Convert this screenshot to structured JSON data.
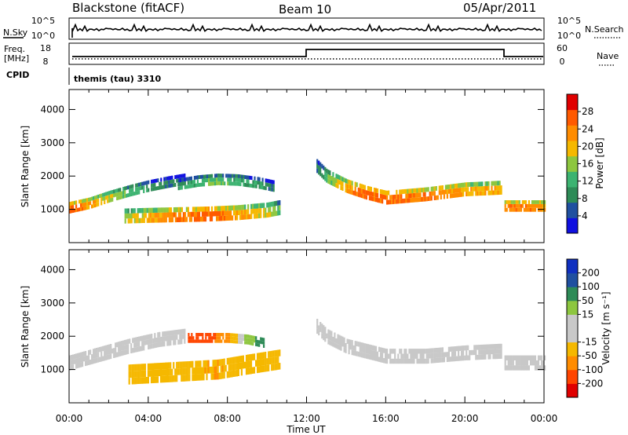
{
  "header": {
    "station": "Blackstone (fitACF)",
    "beam": "Beam 10",
    "date": "05/Apr/2011"
  },
  "top_panels": {
    "nsky_label": "N.Sky",
    "nsearch_label": "N.Search",
    "nsky_ticks": [
      "10^5",
      "10^0"
    ],
    "nsearch_ticks": [
      "10^5",
      "10^0"
    ],
    "freq_label_1": "Freq.",
    "freq_label_2": "[MHz]",
    "freq_ticks": [
      "18",
      "8"
    ],
    "nave_label": "Nave",
    "nave_ticks": [
      "60",
      "0"
    ],
    "cpid_label": "CPID",
    "cpid_text": "themis (tau) 3310"
  },
  "colors": {
    "power_scale": [
      "#1010e0",
      "#2050a0",
      "#2e8b57",
      "#3cb371",
      "#8dc63f",
      "#f5b800",
      "#ff8c00",
      "#ff5a00",
      "#e00000"
    ],
    "velocity_scale": [
      "#e00000",
      "#ff4500",
      "#ff8c00",
      "#f5b800",
      "#c8c8c8",
      "#c8c8c8",
      "#8dc63f",
      "#2e8b57",
      "#2050a0",
      "#1030c0"
    ]
  },
  "chart_data": [
    {
      "type": "heatmap",
      "panel": "power",
      "ylabel": "Slant Range [km]",
      "xlabel": "Time UT",
      "xlim": [
        0,
        24
      ],
      "ylim": [
        0,
        4600
      ],
      "x_ticks": [
        "00:00",
        "04:00",
        "08:00",
        "12:00",
        "16:00",
        "20:00",
        "00:00"
      ],
      "y_ticks": [
        1000,
        2000,
        3000,
        4000
      ],
      "colorbar": {
        "label": "Power [dB]",
        "ticks": [
          4,
          8,
          12,
          16,
          20,
          24,
          28
        ],
        "range": [
          0,
          32
        ]
      },
      "echo_bands": [
        {
          "x": [
            0.0,
            1.0,
            2.0,
            3.0,
            4.0,
            5.0,
            5.8
          ],
          "y_center": [
            1050,
            1180,
            1380,
            1550,
            1700,
            1820,
            1900
          ],
          "thickness_km": 350,
          "power_db": [
            26,
            22,
            18,
            14,
            10,
            8,
            6
          ]
        },
        {
          "x": [
            2.8,
            4.0,
            5.5,
            7.0,
            8.5,
            10.0,
            10.6
          ],
          "y_center": [
            800,
            820,
            840,
            860,
            900,
            980,
            1050
          ],
          "thickness_km": 450,
          "power_db": [
            16,
            20,
            24,
            26,
            22,
            18,
            14
          ]
        },
        {
          "x": [
            5.5,
            6.5,
            7.5,
            8.5,
            9.5,
            10.3
          ],
          "y_center": [
            1750,
            1850,
            1900,
            1880,
            1800,
            1700
          ],
          "thickness_km": 350,
          "power_db": [
            10,
            12,
            14,
            12,
            10,
            8
          ]
        },
        {
          "x": [
            12.5,
            13.0,
            14.0,
            15.0,
            16.0,
            18.0,
            20.0,
            21.8
          ],
          "y_center": [
            2300,
            2000,
            1700,
            1500,
            1350,
            1450,
            1600,
            1650
          ],
          "thickness_km": 420,
          "power_db": [
            8,
            14,
            22,
            26,
            26,
            24,
            22,
            20
          ]
        },
        {
          "x": [
            22.0,
            23.0,
            24.0
          ],
          "y_center": [
            1100,
            1100,
            1100
          ],
          "thickness_km": 350,
          "power_db": [
            24,
            24,
            22
          ]
        }
      ]
    },
    {
      "type": "heatmap",
      "panel": "velocity",
      "ylabel": "Slant Range [km]",
      "xlabel": "Time UT",
      "xlim": [
        0,
        24
      ],
      "ylim": [
        0,
        4600
      ],
      "x_ticks": [
        "00:00",
        "04:00",
        "08:00",
        "12:00",
        "16:00",
        "20:00",
        "00:00"
      ],
      "y_ticks": [
        1000,
        2000,
        3000,
        4000
      ],
      "colorbar": {
        "label": "Velocity [m s⁻¹]",
        "ticks": [
          -200,
          -100,
          -50,
          -15,
          15,
          50,
          100,
          200
        ]
      },
      "echo_bands": [
        {
          "x": [
            0.0,
            1.5,
            3.0,
            4.5,
            5.8
          ],
          "y_center": [
            1200,
            1450,
            1700,
            1900,
            2000
          ],
          "thickness_km": 450,
          "velocity": [
            -10,
            -10,
            -10,
            5,
            10
          ]
        },
        {
          "x": [
            3.0,
            4.5,
            6.0,
            7.5,
            9.0,
            10.6
          ],
          "y_center": [
            850,
            900,
            950,
            1000,
            1150,
            1300
          ],
          "thickness_km": 600,
          "velocity": [
            -30,
            -40,
            -40,
            -50,
            -40,
            -30
          ]
        },
        {
          "x": [
            6.0,
            7.0,
            8.0,
            9.0,
            9.8
          ],
          "y_center": [
            1950,
            1950,
            1950,
            1900,
            1800
          ],
          "thickness_km": 300,
          "velocity": [
            -150,
            -120,
            -60,
            30,
            80
          ]
        },
        {
          "x": [
            12.5,
            13.0,
            14.0,
            16.0,
            18.0,
            20.0,
            21.8
          ],
          "y_center": [
            2300,
            2000,
            1700,
            1400,
            1400,
            1500,
            1550
          ],
          "thickness_km": 450,
          "velocity": [
            10,
            5,
            0,
            -5,
            -5,
            0,
            0
          ]
        },
        {
          "x": [
            22.0,
            23.0,
            24.0
          ],
          "y_center": [
            1200,
            1200,
            1200
          ],
          "thickness_km": 450,
          "velocity": [
            0,
            0,
            0
          ]
        }
      ]
    }
  ]
}
